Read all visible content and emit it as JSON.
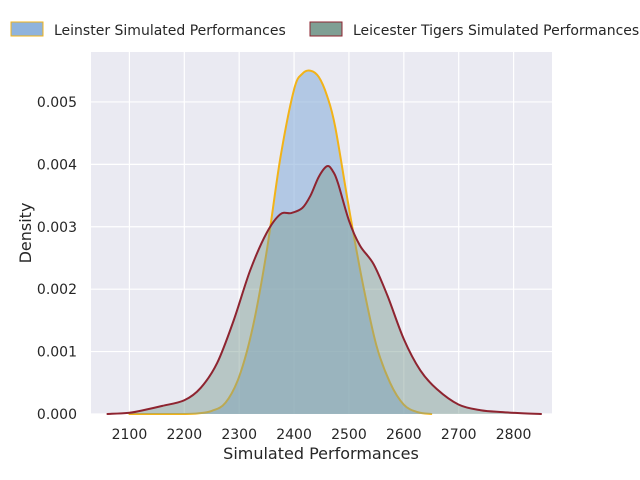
{
  "chart_data": {
    "type": "area",
    "title": "",
    "xlabel": "Simulated Performances",
    "ylabel": "Density",
    "xlim": [
      2030,
      2870
    ],
    "ylim": [
      0,
      0.0058
    ],
    "xticks": [
      2100,
      2200,
      2300,
      2400,
      2500,
      2600,
      2700,
      2800
    ],
    "xtick_labels": [
      "2100",
      "2200",
      "2300",
      "2400",
      "2500",
      "2600",
      "2700",
      "2800"
    ],
    "yticks": [
      0,
      0.001,
      0.002,
      0.003,
      0.004,
      0.005
    ],
    "ytick_labels": [
      "0.000",
      "0.001",
      "0.002",
      "0.003",
      "0.004",
      "0.005"
    ],
    "grid": true,
    "legend_position": "top",
    "series": [
      {
        "name": "Leinster Simulated Performances",
        "fill_color": "#8fb3dc",
        "line_color": "#f2b318",
        "x": [
          2100,
          2150,
          2200,
          2225,
          2250,
          2275,
          2300,
          2325,
          2350,
          2375,
          2400,
          2415,
          2430,
          2445,
          2460,
          2475,
          2500,
          2525,
          2550,
          2575,
          2600,
          2625,
          2650
        ],
        "y": [
          0.0,
          0.0,
          0.0,
          1e-05,
          5e-05,
          0.00018,
          0.0006,
          0.0014,
          0.0026,
          0.0041,
          0.0052,
          0.00545,
          0.0055,
          0.0054,
          0.0051,
          0.0046,
          0.0033,
          0.0021,
          0.0011,
          0.0005,
          0.00015,
          3e-05,
          0.0
        ]
      },
      {
        "name": "Leicester Tigers Simulated Performances",
        "fill_color": "#7f9f94",
        "line_color": "#8e2430",
        "x": [
          2060,
          2100,
          2130,
          2160,
          2200,
          2230,
          2260,
          2290,
          2320,
          2350,
          2375,
          2395,
          2415,
          2430,
          2445,
          2460,
          2470,
          2480,
          2500,
          2520,
          2545,
          2570,
          2600,
          2630,
          2660,
          2700,
          2740,
          2780,
          2820,
          2850
        ],
        "y": [
          0.0,
          2e-05,
          7e-05,
          0.00013,
          0.00022,
          0.00042,
          0.00082,
          0.0015,
          0.0023,
          0.0029,
          0.0032,
          0.00322,
          0.0033,
          0.0035,
          0.0038,
          0.00397,
          0.0039,
          0.0037,
          0.0031,
          0.0027,
          0.0024,
          0.0019,
          0.0012,
          0.0007,
          0.0004,
          0.00015,
          6e-05,
          3e-05,
          1e-05,
          0.0
        ]
      }
    ]
  }
}
